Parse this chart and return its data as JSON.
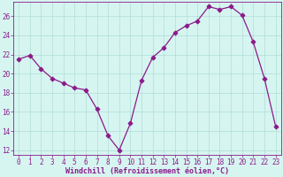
{
  "x": [
    0,
    1,
    2,
    3,
    4,
    5,
    6,
    7,
    8,
    9,
    10,
    11,
    12,
    13,
    14,
    15,
    16,
    17,
    18,
    19,
    20,
    21,
    22,
    23
  ],
  "y": [
    21.5,
    21.9,
    20.5,
    19.5,
    19.0,
    18.5,
    18.3,
    16.3,
    13.5,
    12.0,
    14.8,
    19.3,
    21.7,
    22.7,
    24.3,
    25.0,
    25.5,
    27.0,
    26.7,
    27.0,
    26.1,
    23.3,
    19.5,
    14.5
  ],
  "line_color": "#8b1a8b",
  "marker": "D",
  "marker_size": 2.5,
  "bg_color": "#d6f5f0",
  "grid_color": "#b0ddd8",
  "xlabel": "Windchill (Refroidissement éolien,°C)",
  "xlim": [
    -0.5,
    23.5
  ],
  "ylim": [
    11.5,
    27.5
  ],
  "yticks": [
    12,
    14,
    16,
    18,
    20,
    22,
    24,
    26
  ],
  "xticks": [
    0,
    1,
    2,
    3,
    4,
    5,
    6,
    7,
    8,
    9,
    10,
    11,
    12,
    13,
    14,
    15,
    16,
    17,
    18,
    19,
    20,
    21,
    22,
    23
  ],
  "tick_color": "#8b1a8b",
  "label_color": "#8b1a8b",
  "label_fontsize": 6.0,
  "tick_fontsize": 5.5,
  "linewidth": 0.9
}
